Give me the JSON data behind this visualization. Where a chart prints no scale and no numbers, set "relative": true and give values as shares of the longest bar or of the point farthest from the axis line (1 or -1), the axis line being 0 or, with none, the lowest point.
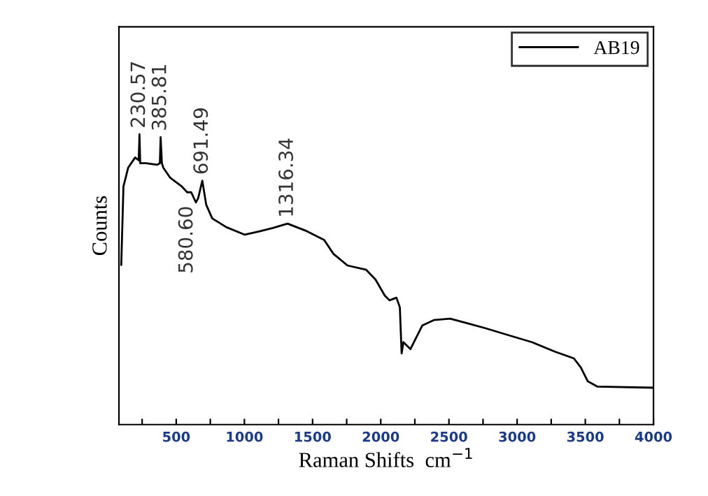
{
  "chart_data": {
    "type": "line",
    "relative": true,
    "xlabel": "Raman Shifts  cm$^{−1}$",
    "ylabel": "Counts",
    "xlim": [
      80,
      4000
    ],
    "xticks": [
      {
        "value": 250,
        "label": null
      },
      500,
      {
        "value": 750,
        "label": null
      },
      1000,
      {
        "value": 1250,
        "label": null
      },
      1500,
      {
        "value": 1750,
        "label": null
      },
      2000,
      {
        "value": 2250,
        "label": null
      },
      2500,
      {
        "value": 2750,
        "label": null
      },
      3000,
      {
        "value": 3250,
        "label": null
      },
      3500,
      {
        "value": 3750,
        "label": null
      },
      4000
    ],
    "legend": "top right",
    "marker": "none",
    "line_style": "solid",
    "grid": false,
    "tick_labels": "x",
    "series": [
      {
        "name": "AB19",
        "color": "#000000",
        "x": [
          97,
          113,
          148,
          199,
          225,
          230.57,
          236,
          280,
          360,
          380,
          385.81,
          395,
          405,
          456,
          541,
          580.6,
          610,
          644,
          661,
          691.49,
          720,
          764,
          867,
          1003,
          1106,
          1208,
          1316.34,
          1448,
          1585,
          1653,
          1756,
          1893,
          1961,
          2030,
          2064,
          2115,
          2140,
          2153,
          2166,
          2218,
          2304,
          2389,
          2509,
          2628,
          2766,
          2936,
          3108,
          3279,
          3416,
          3467,
          3518,
          3587,
          3998
        ],
        "values": [
          0.55,
          0.82,
          0.885,
          0.92,
          0.91,
          1.0,
          0.9,
          0.9,
          0.895,
          0.9,
          0.99,
          0.9,
          0.885,
          0.85,
          0.82,
          0.8,
          0.8,
          0.765,
          0.78,
          0.84,
          0.757,
          0.71,
          0.68,
          0.654,
          0.665,
          0.677,
          0.692,
          0.668,
          0.636,
          0.588,
          0.548,
          0.533,
          0.5,
          0.444,
          0.428,
          0.437,
          0.404,
          0.245,
          0.284,
          0.26,
          0.341,
          0.36,
          0.365,
          0.35,
          0.332,
          0.308,
          0.284,
          0.251,
          0.228,
          0.197,
          0.149,
          0.131,
          0.127
        ]
      }
    ],
    "annotations": [
      {
        "text": "230.57",
        "x": 230.57,
        "y": 1.0
      },
      {
        "text": "385.81",
        "x": 385.81,
        "y": 0.99
      },
      {
        "text": "580.60",
        "x": 580.6,
        "y": 0.78
      },
      {
        "text": "691.49",
        "x": 691.49,
        "y": 0.84
      },
      {
        "text": "1316.34",
        "x": 1316.34,
        "y": 0.692
      }
    ]
  }
}
